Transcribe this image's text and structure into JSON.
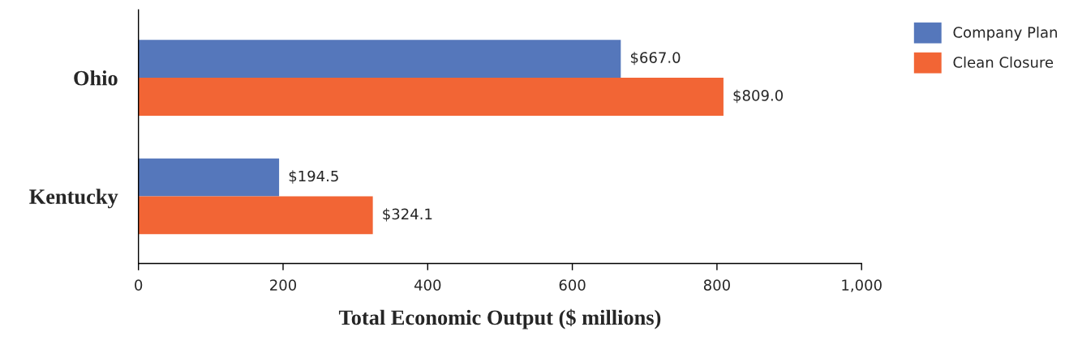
{
  "chart_data": {
    "type": "bar",
    "orientation": "horizontal",
    "categories": [
      "Ohio",
      "Kentucky"
    ],
    "series": [
      {
        "name": "Company Plan",
        "color": "#5577bb",
        "values": [
          667.0,
          194.5
        ],
        "value_labels": [
          "$667.0",
          "$194.5"
        ]
      },
      {
        "name": "Clean Closure",
        "color": "#f26535",
        "values": [
          809.0,
          324.1
        ],
        "value_labels": [
          "$809.0",
          "$324.1"
        ]
      }
    ],
    "xlabel": "Total Economic Output ($ millions)",
    "xlim": [
      0,
      1000
    ],
    "xticks": [
      0,
      200,
      400,
      600,
      800,
      {
        "value": 1000,
        "label": "1,000"
      }
    ],
    "grid": false,
    "legend": "top right"
  }
}
